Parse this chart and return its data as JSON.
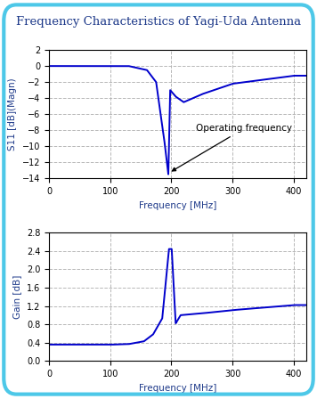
{
  "title": "Frequency Characteristics of Yagi-Uda Antenna",
  "title_color": "#1e3a8a",
  "title_fontsize": 9.5,
  "bg_color": "#ffffff",
  "border_color": "#4dc8e8",
  "plot_bg": "#ffffff",
  "line_color": "#0000cc",
  "line_width": 1.4,
  "freq_min": 0,
  "freq_max": 420,
  "s11_ylabel": "S11 [dB](Magn)",
  "s11_ylim": [
    -14,
    2
  ],
  "s11_yticks": [
    -14,
    -12,
    -10,
    -8,
    -6,
    -4,
    -2,
    0,
    2
  ],
  "gain_ylabel": "Gain [dB]",
  "gain_ylim": [
    0.0,
    2.8
  ],
  "gain_yticks": [
    0.0,
    0.4,
    0.8,
    1.2,
    1.6,
    2.0,
    2.4,
    2.8
  ],
  "xlabel": "Frequency [MHz]",
  "xticks": [
    0,
    100,
    200,
    300,
    400
  ],
  "annotation_text": "Operating frequency",
  "annotation_color": "#000000",
  "annotation_fontsize": 7.5,
  "grid_color": "#b0b0b0",
  "grid_style": "--",
  "axis_label_fontsize": 7.5,
  "tick_fontsize": 7
}
